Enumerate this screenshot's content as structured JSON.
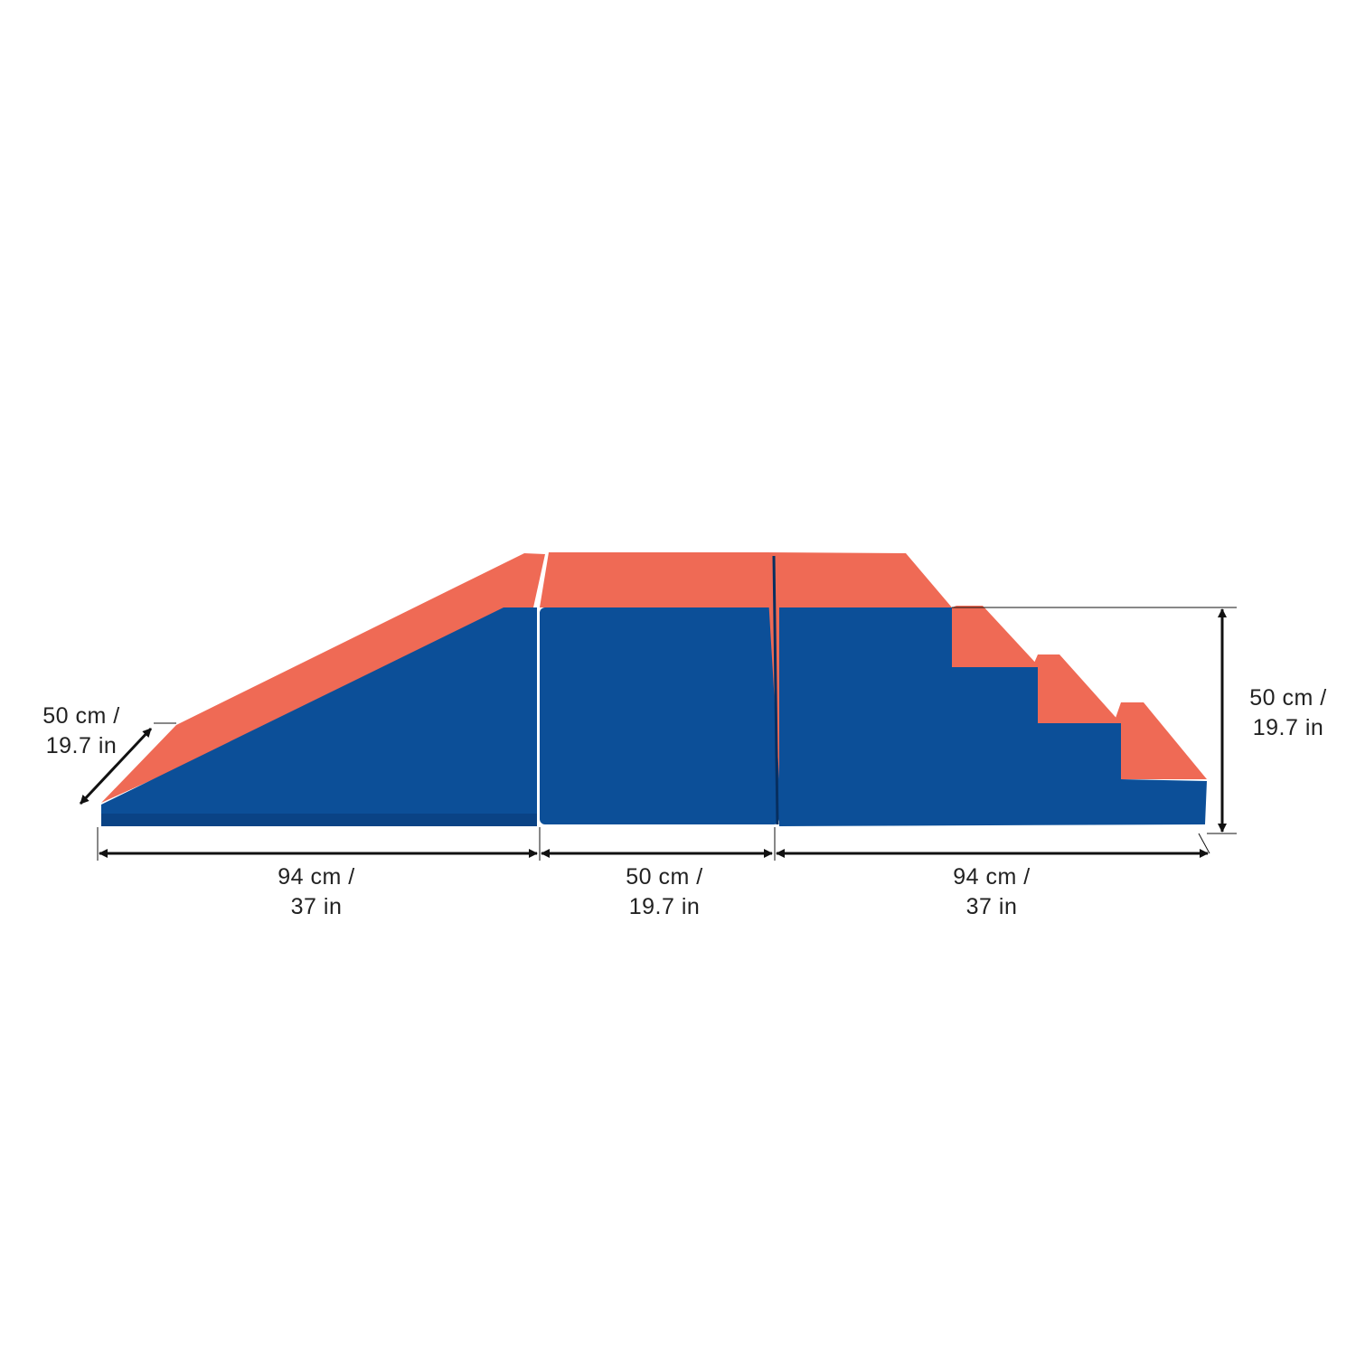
{
  "colors": {
    "blue": "#0c4f98",
    "blue_dark": "#0a4385",
    "red": "#ef6a55",
    "red_edge": "#e2574a",
    "line": "#111111"
  },
  "dimensions": {
    "depth": {
      "line1": "50 cm /",
      "line2": "19.7 in"
    },
    "height": {
      "line1": "50 cm /",
      "line2": "19.7 in"
    },
    "ramp_length": {
      "line1": "94 cm /",
      "line2": "37 in"
    },
    "cube_length": {
      "line1": "50 cm /",
      "line2": "19.7 in"
    },
    "stairs_length": {
      "line1": "94 cm /",
      "line2": "37 in"
    }
  }
}
